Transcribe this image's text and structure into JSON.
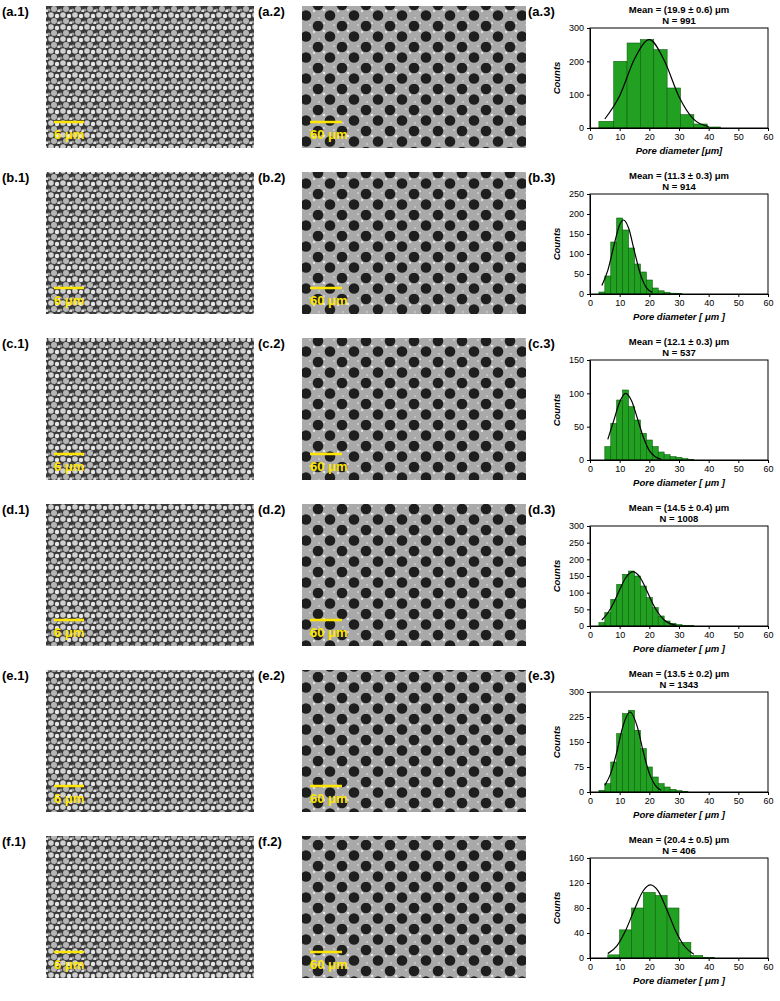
{
  "panels": [
    {
      "image_label": "(a.1)",
      "image_scale_bar": "6 μm",
      "pores_label": "(a.2)",
      "pores_scale_bar": "60 μm"
    },
    {
      "image_label": "(b.1)",
      "image_scale_bar": "6 μm",
      "pores_label": "(b.2)",
      "pores_scale_bar": "60 μm"
    },
    {
      "image_label": "(c.1)",
      "image_scale_bar": "6 μm",
      "pores_label": "(c.2)",
      "pores_scale_bar": "60 μm"
    },
    {
      "image_label": "(d.1)",
      "image_scale_bar": "6 μm",
      "pores_label": "(d.2)",
      "pores_scale_bar": "60 μm"
    },
    {
      "image_label": "(e.1)",
      "image_scale_bar": "6 μm",
      "pores_label": "(e.2)",
      "pores_scale_bar": "60 μm"
    },
    {
      "image_label": "(f.1)",
      "image_scale_bar": "6 μm",
      "pores_label": "(f.2)",
      "pores_scale_bar": "60 μm"
    }
  ],
  "chart_data": [
    {
      "type": "histogram",
      "label": "(a.3)",
      "title": "Mean = (19.9 ± 0.6) μm",
      "subtitle": "N = 991",
      "x_label": "Pore diameter [μm]",
      "y_label": "Counts",
      "color": "#22a022",
      "bins": [
        3,
        8,
        12.5,
        17,
        21.5,
        26,
        30.5,
        35,
        39.5,
        44
      ],
      "counts": [
        20,
        200,
        255,
        265,
        235,
        120,
        40,
        12,
        3
      ],
      "fit": {
        "x": [
          5,
          10,
          15,
          20,
          25,
          30,
          35,
          40
        ],
        "values": [
          27,
          97,
          207,
          265,
          203,
          94,
          26,
          4
        ],
        "color": "#000000"
      },
      "xlim": [
        0,
        60
      ],
      "xticks": [
        0,
        10,
        20,
        30,
        40,
        50,
        60
      ],
      "ylim": [
        0,
        300
      ],
      "yticks": [
        0,
        100,
        200,
        300
      ]
    },
    {
      "type": "histogram",
      "label": "(b.3)",
      "title": "Mean = (11.3 ± 0.3) μm",
      "subtitle": "N = 914",
      "x_label": "Pore diameter [ μm ]",
      "y_label": "Counts",
      "color": "#22a022",
      "bins": [
        3,
        5,
        7,
        9,
        11,
        13,
        15,
        17,
        19,
        21,
        23,
        25,
        27,
        29,
        31
      ],
      "counts": [
        5,
        45,
        130,
        190,
        160,
        115,
        75,
        55,
        35,
        15,
        8,
        4,
        2,
        1
      ],
      "fit": {
        "x": [
          4,
          6,
          8,
          10,
          11.3,
          13,
          15,
          17,
          19,
          21
        ],
        "values": [
          21,
          59,
          119,
          173,
          185,
          165,
          106,
          49,
          16,
          4
        ],
        "color": "#000000"
      },
      "xlim": [
        0,
        60
      ],
      "xticks": [
        0,
        10,
        20,
        30,
        40,
        50,
        60
      ],
      "ylim": [
        0,
        250
      ],
      "yticks": [
        0,
        50,
        100,
        150,
        200,
        250
      ]
    },
    {
      "type": "histogram",
      "label": "(c.3)",
      "title": "Mean = (12.1 ± 0.3) μm",
      "subtitle": "N = 537",
      "x_label": "Pore diameter [ μm ]",
      "y_label": "Counts",
      "color": "#22a022",
      "bins": [
        5,
        7,
        9,
        11,
        13,
        15,
        17,
        19,
        21,
        23,
        25,
        27,
        29,
        31,
        33,
        35
      ],
      "counts": [
        20,
        55,
        90,
        105,
        80,
        60,
        40,
        30,
        20,
        12,
        8,
        5,
        4,
        2,
        1
      ],
      "fit": {
        "x": [
          6,
          8,
          10,
          12,
          14,
          16,
          18,
          20,
          22,
          24
        ],
        "values": [
          31,
          59,
          87,
          100,
          89,
          62,
          34,
          14,
          5,
          1
        ],
        "color": "#000000"
      },
      "xlim": [
        0,
        60
      ],
      "xticks": [
        0,
        10,
        20,
        30,
        40,
        50,
        60
      ],
      "ylim": [
        0,
        150
      ],
      "yticks": [
        0,
        50,
        100,
        150
      ]
    },
    {
      "type": "histogram",
      "label": "(d.3)",
      "title": "Mean = (14.5 ± 0.4) μm",
      "subtitle": "N = 1008",
      "x_label": "Pore diameter [ μm ]",
      "y_label": "Counts",
      "color": "#22a022",
      "bins": [
        3,
        5,
        7,
        9,
        11,
        13,
        15,
        17,
        19,
        21,
        23,
        25,
        27,
        29,
        31,
        33,
        35
      ],
      "counts": [
        10,
        40,
        80,
        125,
        155,
        165,
        150,
        120,
        85,
        55,
        30,
        15,
        8,
        4,
        2,
        1
      ],
      "fit": {
        "x": [
          4,
          6,
          8,
          10,
          12,
          14.5,
          17,
          19,
          21,
          23,
          25,
          27,
          29
        ],
        "values": [
          18,
          39,
          70,
          109,
          144,
          163,
          144,
          109,
          70,
          39,
          18,
          7,
          2
        ],
        "color": "#000000"
      },
      "xlim": [
        0,
        60
      ],
      "xticks": [
        0,
        10,
        20,
        30,
        40,
        50,
        60
      ],
      "ylim": [
        0,
        300
      ],
      "yticks": [
        0,
        50,
        100,
        150,
        200,
        250,
        300
      ]
    },
    {
      "type": "histogram",
      "label": "(e.3)",
      "title": "Mean = (13.5 ± 0.2) μm",
      "subtitle": "N = 1343",
      "x_label": "Pore diameter [ μm ]",
      "y_label": "Counts",
      "color": "#22a022",
      "bins": [
        3,
        5,
        7,
        9,
        11,
        13,
        15,
        17,
        19,
        21,
        23,
        25,
        27,
        29,
        31,
        33
      ],
      "counts": [
        5,
        25,
        90,
        175,
        235,
        245,
        185,
        130,
        75,
        45,
        25,
        15,
        8,
        4,
        2
      ],
      "fit": {
        "x": [
          5,
          7,
          9,
          11,
          13.5,
          16,
          18,
          20,
          22,
          24
        ],
        "values": [
          20,
          56,
          119,
          194,
          240,
          194,
          119,
          56,
          20,
          5
        ],
        "color": "#000000"
      },
      "xlim": [
        0,
        60
      ],
      "xticks": [
        0,
        10,
        20,
        30,
        40,
        50,
        60
      ],
      "ylim": [
        0,
        300
      ],
      "yticks": [
        0,
        75,
        150,
        225,
        300
      ]
    },
    {
      "type": "histogram",
      "title": "Mean = (20.4 ± 0.5) μm",
      "subtitle": "N = 406",
      "x_label": "Pore diameter [ μm ]",
      "y_label": "Counts",
      "color": "#22a022",
      "bins": [
        6,
        10,
        14,
        18,
        22,
        26,
        30,
        34,
        38,
        42
      ],
      "counts": [
        5,
        45,
        80,
        105,
        100,
        80,
        25,
        4,
        1
      ],
      "fit": {
        "x": [
          6,
          9,
          12,
          15,
          18,
          20.4,
          23,
          26,
          29,
          32,
          35
        ],
        "values": [
          7,
          19,
          44,
          78,
          108,
          117,
          107,
          76,
          42,
          18,
          6
        ],
        "color": "#000000"
      },
      "xlim": [
        0,
        60
      ],
      "xticks": [
        0,
        10,
        20,
        30,
        40,
        50,
        60
      ],
      "ylim": [
        0,
        160
      ],
      "yticks": [
        0,
        40,
        80,
        120,
        160
      ]
    }
  ]
}
